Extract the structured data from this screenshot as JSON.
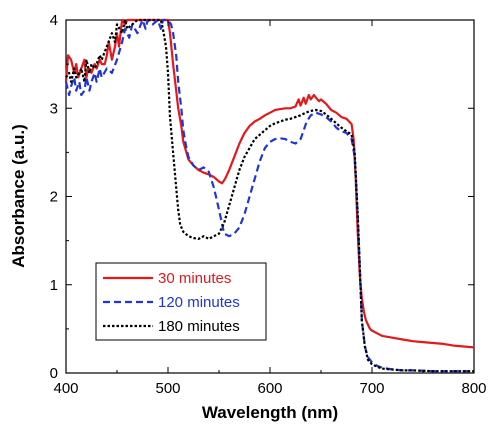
{
  "chart_data": {
    "type": "line",
    "title": "",
    "xlabel": "Wavelength (nm)",
    "ylabel": "Absorbance (a.u.)",
    "xlim": [
      400,
      800
    ],
    "ylim": [
      0,
      4
    ],
    "xticks": [
      400,
      500,
      600,
      700,
      800
    ],
    "yticks": [
      0,
      1,
      2,
      3,
      4
    ],
    "grid": false,
    "legend_position": "bottom-left",
    "series": [
      {
        "name": "30 minutes",
        "color": "#e3191c",
        "dash": "solid",
        "x": [
          400,
          402,
          405,
          408,
          410,
          412,
          415,
          418,
          420,
          422,
          425,
          428,
          430,
          433,
          435,
          438,
          440,
          442,
          445,
          448,
          450,
          452,
          455,
          458,
          460,
          465,
          470,
          480,
          490,
          495,
          500,
          502,
          505,
          508,
          510,
          513,
          515,
          518,
          520,
          525,
          530,
          535,
          540,
          545,
          550,
          553,
          556,
          560,
          565,
          570,
          575,
          580,
          585,
          590,
          595,
          600,
          605,
          610,
          615,
          620,
          625,
          628,
          630,
          633,
          635,
          638,
          640,
          643,
          645,
          648,
          650,
          655,
          660,
          665,
          670,
          675,
          680,
          682,
          684,
          686,
          688,
          690,
          692,
          694,
          696,
          698,
          700,
          705,
          710,
          720,
          730,
          740,
          750,
          760,
          770,
          780,
          790,
          800
        ],
        "y": [
          3.3,
          3.6,
          3.55,
          3.4,
          3.5,
          3.35,
          3.45,
          3.55,
          3.35,
          3.45,
          3.4,
          3.5,
          3.45,
          3.55,
          3.5,
          3.5,
          3.6,
          3.75,
          3.55,
          3.7,
          3.85,
          3.7,
          4.0,
          3.95,
          4.0,
          4.0,
          4.0,
          4.0,
          4.0,
          4.0,
          4.0,
          3.85,
          3.5,
          3.2,
          3.0,
          2.8,
          2.62,
          2.5,
          2.42,
          2.35,
          2.3,
          2.27,
          2.25,
          2.22,
          2.17,
          2.15,
          2.2,
          2.3,
          2.45,
          2.6,
          2.72,
          2.8,
          2.85,
          2.88,
          2.92,
          2.95,
          2.98,
          2.99,
          3.0,
          3.0,
          3.02,
          3.1,
          3.03,
          3.12,
          3.05,
          3.15,
          3.1,
          3.15,
          3.12,
          3.08,
          3.1,
          3.05,
          2.98,
          2.95,
          2.9,
          2.88,
          2.82,
          2.65,
          2.2,
          1.6,
          1.1,
          0.85,
          0.7,
          0.6,
          0.55,
          0.5,
          0.48,
          0.45,
          0.42,
          0.4,
          0.38,
          0.36,
          0.35,
          0.34,
          0.33,
          0.31,
          0.3,
          0.29
        ]
      },
      {
        "name": "120 minutes",
        "color": "#1f35d6",
        "dash": "dashed",
        "x": [
          400,
          403,
          405,
          408,
          410,
          413,
          415,
          418,
          420,
          423,
          425,
          428,
          430,
          433,
          435,
          440,
          445,
          450,
          455,
          458,
          462,
          465,
          470,
          475,
          478,
          480,
          485,
          490,
          493,
          495,
          500,
          503,
          505,
          508,
          510,
          513,
          515,
          518,
          520,
          525,
          530,
          535,
          540,
          545,
          550,
          555,
          560,
          565,
          570,
          575,
          580,
          585,
          590,
          595,
          600,
          605,
          610,
          615,
          620,
          625,
          630,
          633,
          636,
          640,
          645,
          650,
          655,
          660,
          665,
          670,
          675,
          680,
          683,
          686,
          688,
          690,
          693,
          696,
          700,
          705,
          710,
          720,
          730,
          740,
          760,
          780,
          800
        ],
        "y": [
          3.3,
          3.15,
          3.25,
          3.35,
          3.2,
          3.3,
          3.15,
          3.2,
          3.35,
          3.2,
          3.3,
          3.4,
          3.3,
          3.45,
          3.35,
          3.45,
          3.4,
          3.55,
          3.75,
          3.9,
          3.8,
          3.95,
          3.85,
          4.0,
          3.9,
          4.0,
          3.95,
          4.0,
          3.9,
          4.0,
          4.0,
          3.95,
          3.85,
          3.6,
          3.3,
          3.0,
          2.75,
          2.55,
          2.45,
          2.35,
          2.3,
          2.33,
          2.28,
          2.1,
          1.85,
          1.58,
          1.55,
          1.58,
          1.65,
          1.8,
          2.0,
          2.2,
          2.4,
          2.55,
          2.62,
          2.65,
          2.66,
          2.65,
          2.62,
          2.6,
          2.65,
          2.75,
          2.85,
          2.92,
          2.95,
          2.93,
          2.9,
          2.85,
          2.78,
          2.74,
          2.72,
          2.65,
          2.45,
          1.8,
          1.2,
          0.6,
          0.3,
          0.18,
          0.12,
          0.08,
          0.06,
          0.04,
          0.03,
          0.03,
          0.02,
          0.02,
          0.02
        ]
      },
      {
        "name": "180 minutes",
        "color": "#000000",
        "dash": "dotted",
        "x": [
          400,
          403,
          405,
          408,
          410,
          413,
          415,
          418,
          420,
          423,
          425,
          428,
          430,
          433,
          435,
          440,
          445,
          448,
          450,
          455,
          458,
          460,
          465,
          470,
          475,
          480,
          485,
          488,
          490,
          493,
          495,
          498,
          500,
          502,
          505,
          508,
          510,
          512,
          515,
          520,
          525,
          530,
          535,
          540,
          545,
          550,
          555,
          560,
          565,
          570,
          575,
          580,
          585,
          590,
          595,
          600,
          605,
          610,
          615,
          620,
          625,
          630,
          635,
          640,
          645,
          650,
          655,
          660,
          665,
          670,
          675,
          680,
          683,
          686,
          688,
          690,
          693,
          696,
          700,
          705,
          710,
          720,
          730,
          740,
          760,
          780,
          800
        ],
        "y": [
          3.35,
          3.4,
          3.3,
          3.45,
          3.35,
          3.4,
          3.45,
          3.3,
          3.55,
          3.4,
          3.5,
          3.45,
          3.5,
          3.6,
          3.55,
          3.7,
          3.85,
          3.75,
          3.95,
          3.85,
          4.0,
          3.9,
          3.95,
          4.0,
          4.0,
          4.0,
          4.0,
          4.0,
          4.0,
          4.0,
          3.9,
          3.7,
          3.4,
          2.9,
          2.5,
          2.1,
          1.85,
          1.68,
          1.6,
          1.55,
          1.53,
          1.52,
          1.55,
          1.52,
          1.55,
          1.58,
          1.7,
          1.9,
          2.1,
          2.3,
          2.45,
          2.55,
          2.65,
          2.7,
          2.75,
          2.8,
          2.83,
          2.85,
          2.87,
          2.88,
          2.9,
          2.92,
          2.95,
          2.97,
          2.98,
          2.97,
          2.93,
          2.88,
          2.83,
          2.78,
          2.74,
          2.7,
          2.5,
          1.8,
          1.2,
          0.6,
          0.3,
          0.15,
          0.1,
          0.07,
          0.05,
          0.04,
          0.03,
          0.03,
          0.02,
          0.02,
          0.02
        ]
      }
    ]
  }
}
